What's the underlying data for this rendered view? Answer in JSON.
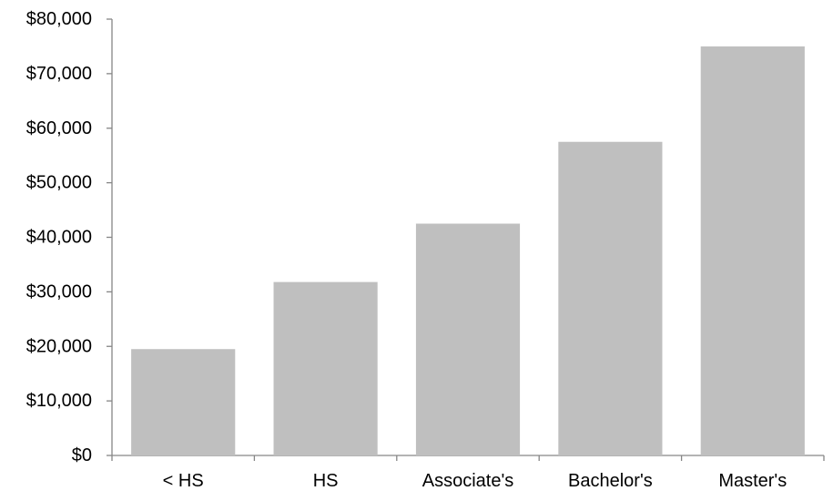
{
  "chart_data": {
    "type": "bar",
    "title": "",
    "xlabel": "",
    "ylabel": "",
    "categories": [
      "< HS",
      "HS",
      "Associate's",
      "Bachelor's",
      "Master's"
    ],
    "values": [
      19500,
      31800,
      42500,
      57500,
      75000
    ],
    "ylim": [
      0,
      80000
    ],
    "yticks": [
      0,
      10000,
      20000,
      30000,
      40000,
      50000,
      60000,
      70000,
      80000
    ],
    "ytick_labels": [
      "$0",
      "$10,000",
      "$20,000",
      "$30,000",
      "$40,000",
      "$50,000",
      "$60,000",
      "$70,000",
      "$80,000"
    ],
    "grid": false,
    "legend": "none",
    "bar_color": "#bfbfbf",
    "axis_color": "#868686"
  }
}
